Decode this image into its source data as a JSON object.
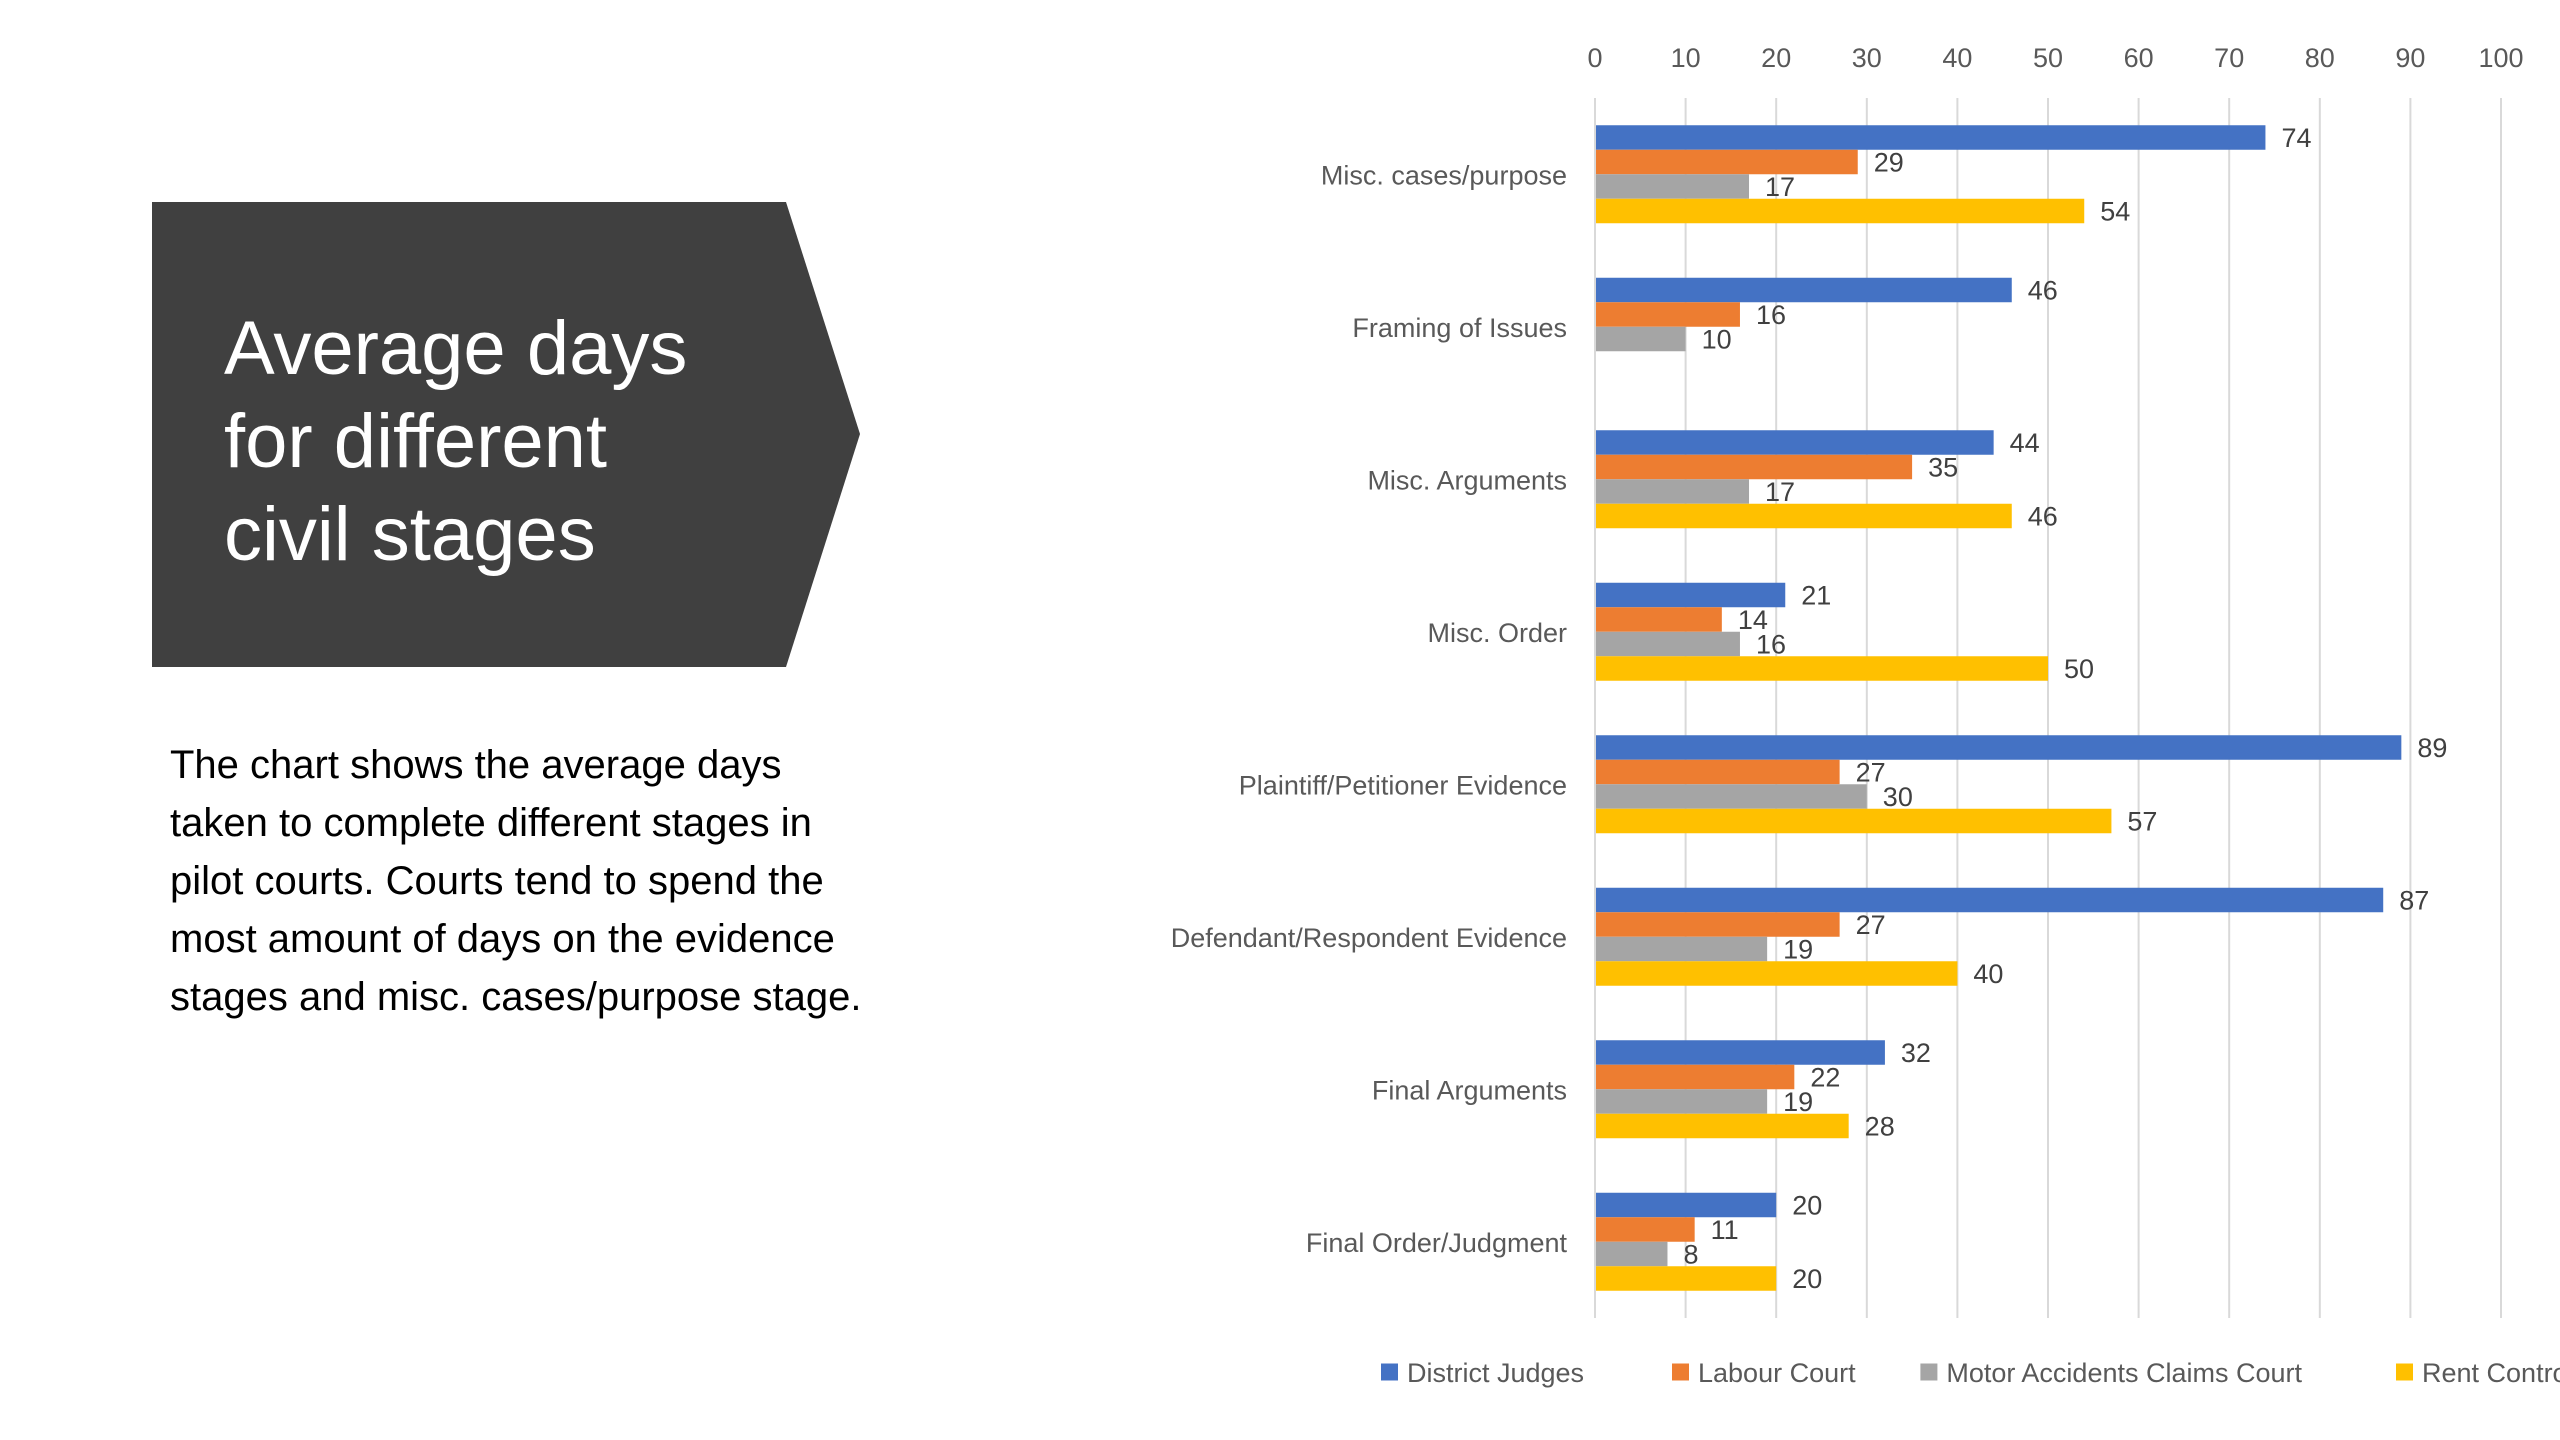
{
  "slide": {
    "title": "Average days\nfor different\ncivil stages",
    "description": "The chart shows the average days taken to complete different stages in pilot courts. Courts tend to spend the most amount of days on the evidence stages and misc. cases/purpose stage.",
    "banner_color": "#404040"
  },
  "chart_data": {
    "type": "bar",
    "orientation": "horizontal",
    "title": "",
    "xlabel": "",
    "ylabel": "",
    "xlim": [
      0,
      100
    ],
    "x_ticks": [
      0,
      10,
      20,
      30,
      40,
      50,
      60,
      70,
      80,
      90,
      100
    ],
    "x_axis_position": "top",
    "grid": true,
    "legend_position": "bottom",
    "categories": [
      "Misc. cases/purpose",
      "Framing of Issues",
      "Misc. Arguments",
      "Misc. Order",
      "Plaintiff/Petitioner Evidence",
      "Defendant/Respondent Evidence",
      "Final Arguments",
      "Final Order/Judgment"
    ],
    "series": [
      {
        "name": "District Judges",
        "color": "#4472C4",
        "values": [
          74,
          46,
          44,
          21,
          89,
          87,
          32,
          20
        ]
      },
      {
        "name": "Labour Court",
        "color": "#ED7D31",
        "values": [
          29,
          16,
          35,
          14,
          27,
          27,
          22,
          11
        ]
      },
      {
        "name": "Motor Accidents Claims Court",
        "color": "#A5A5A5",
        "values": [
          17,
          10,
          17,
          16,
          30,
          19,
          19,
          8
        ]
      },
      {
        "name": "Rent Controller",
        "color": "#FFC000",
        "values": [
          54,
          null,
          46,
          50,
          57,
          40,
          28,
          20
        ]
      }
    ]
  }
}
